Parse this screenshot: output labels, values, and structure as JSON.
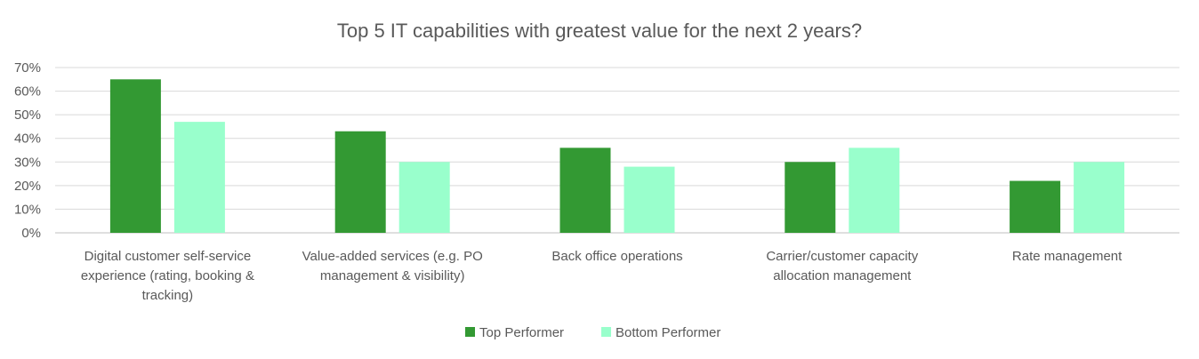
{
  "chart_data": {
    "type": "bar",
    "title": "Top 5 IT capabilities with greatest value for the next 2 years?",
    "categories": [
      "Digital customer self-service experience (rating, booking & tracking)",
      "Value-added services (e.g. PO management & visibility)",
      "Back office operations",
      "Carrier/customer capacity allocation management",
      "Rate management"
    ],
    "category_lines": [
      [
        "Digital customer self-service",
        "experience (rating, booking &",
        "tracking)"
      ],
      [
        "Value-added services (e.g. PO",
        "management & visibility)"
      ],
      [
        "Back office operations"
      ],
      [
        "Carrier/customer capacity",
        "allocation management"
      ],
      [
        "Rate management"
      ]
    ],
    "series": [
      {
        "name": "Top Performer",
        "values": [
          65,
          43,
          36,
          30,
          22
        ],
        "color": "#339933"
      },
      {
        "name": "Bottom Performer",
        "values": [
          47,
          30,
          28,
          36,
          30
        ],
        "color": "#99ffcc"
      }
    ],
    "ylim": [
      0,
      70
    ],
    "yticks": [
      0,
      10,
      20,
      30,
      40,
      50,
      60,
      70
    ],
    "ytick_labels": [
      "0%",
      "10%",
      "20%",
      "30%",
      "40%",
      "50%",
      "60%",
      "70%"
    ],
    "grid": true,
    "legend_position": "bottom",
    "xlabel": "",
    "ylabel": ""
  }
}
